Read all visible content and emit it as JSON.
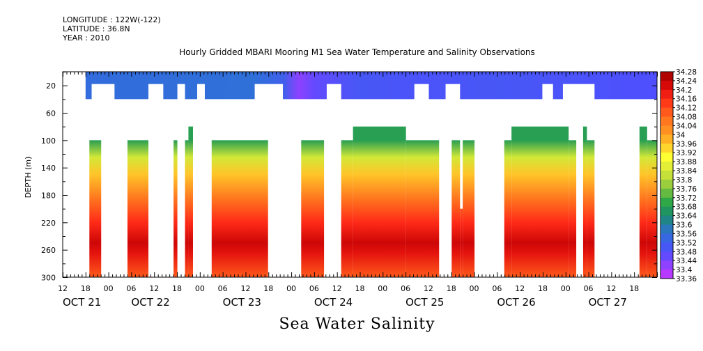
{
  "header": {
    "longitude": "LONGITUDE : 122W(-122)",
    "latitude": "LATITUDE : 36.8N",
    "year": "YEAR : 2010",
    "title": "Hourly Gridded MBARI Mooring M1 Sea Water Temperature and Salinity Observations"
  },
  "footer": {
    "variable_title": "Sea Water Salinity"
  },
  "chart_data": {
    "type": "heatmap",
    "title": "Hourly Gridded MBARI Mooring M1 Sea Water Temperature and Salinity Observations",
    "subtitle": "Sea Water Salinity",
    "xlabel": "",
    "ylabel": "DEPTH (m)",
    "x_start": "OCT 21 12:00",
    "x_end": "OCT 27 24:00",
    "xlim_hours": [
      0,
      156
    ],
    "ylim": [
      0,
      300
    ],
    "y_reversed": true,
    "y_ticks": [
      20,
      60,
      100,
      140,
      180,
      220,
      260,
      300
    ],
    "x_hour_ticks": [
      {
        "h": 0,
        "label": "12"
      },
      {
        "h": 6,
        "label": "18"
      },
      {
        "h": 12,
        "label": "00"
      },
      {
        "h": 18,
        "label": "06"
      },
      {
        "h": 24,
        "label": "12"
      },
      {
        "h": 30,
        "label": "18"
      },
      {
        "h": 36,
        "label": "00"
      },
      {
        "h": 42,
        "label": "06"
      },
      {
        "h": 48,
        "label": "12"
      },
      {
        "h": 54,
        "label": "18"
      },
      {
        "h": 60,
        "label": "00"
      },
      {
        "h": 66,
        "label": "06"
      },
      {
        "h": 72,
        "label": "12"
      },
      {
        "h": 78,
        "label": "18"
      },
      {
        "h": 84,
        "label": "00"
      },
      {
        "h": 90,
        "label": "06"
      },
      {
        "h": 96,
        "label": "12"
      },
      {
        "h": 102,
        "label": "18"
      },
      {
        "h": 108,
        "label": "00"
      },
      {
        "h": 114,
        "label": "06"
      },
      {
        "h": 120,
        "label": "12"
      },
      {
        "h": 126,
        "label": "18"
      },
      {
        "h": 132,
        "label": "00"
      },
      {
        "h": 138,
        "label": "06"
      },
      {
        "h": 144,
        "label": "12"
      },
      {
        "h": 150,
        "label": "18"
      }
    ],
    "x_day_labels": [
      {
        "h": 0,
        "label": "OCT 21"
      },
      {
        "h": 18,
        "label": "OCT 22"
      },
      {
        "h": 42,
        "label": "OCT 23"
      },
      {
        "h": 66,
        "label": "OCT 24"
      },
      {
        "h": 90,
        "label": "OCT 25"
      },
      {
        "h": 114,
        "label": "OCT 26"
      },
      {
        "h": 138,
        "label": "OCT 27"
      }
    ],
    "colorbar": {
      "min": 33.36,
      "max": 34.28,
      "step": 0.04,
      "labels": [
        "34.28",
        "34.24",
        "34.2",
        "34.16",
        "34.12",
        "34.08",
        "34.04",
        "34",
        "33.96",
        "33.92",
        "33.88",
        "33.84",
        "33.8",
        "33.76",
        "33.72",
        "33.68",
        "33.64",
        "33.6",
        "33.56",
        "33.52",
        "33.48",
        "33.44",
        "33.4",
        "33.36"
      ],
      "stops": [
        {
          "v": 33.36,
          "color": "#cc33ff"
        },
        {
          "v": 33.48,
          "color": "#4f4fff"
        },
        {
          "v": 33.56,
          "color": "#2f70d8"
        },
        {
          "v": 33.64,
          "color": "#1a8c6a"
        },
        {
          "v": 33.7,
          "color": "#2fa848"
        },
        {
          "v": 33.8,
          "color": "#b6d83a"
        },
        {
          "v": 33.9,
          "color": "#ffff33"
        },
        {
          "v": 34.0,
          "color": "#ff9c22"
        },
        {
          "v": 34.08,
          "color": "#ff6a1e"
        },
        {
          "v": 34.16,
          "color": "#ff2a18"
        },
        {
          "v": 34.22,
          "color": "#d60808"
        },
        {
          "v": 34.28,
          "color": "#a00000"
        }
      ]
    },
    "surface_layer": {
      "depth_range": [
        0,
        40
      ],
      "gaps_hours": [
        [
          7.6,
          13.6
        ],
        [
          22.5,
          26.4
        ],
        [
          30.1,
          32.1
        ],
        [
          35.3,
          37.3
        ],
        [
          50.4,
          57.8
        ],
        [
          69.3,
          73.1
        ],
        [
          92.3,
          96.1
        ],
        [
          100.5,
          104.3
        ],
        [
          125.9,
          128.7
        ],
        [
          131.3,
          139.6
        ]
      ],
      "salinity_by_hour": [
        [
          6,
          33.55
        ],
        [
          50,
          33.56
        ],
        [
          58,
          33.52
        ],
        [
          62,
          33.42
        ],
        [
          66,
          33.46
        ],
        [
          78,
          33.5
        ],
        [
          95,
          33.49
        ],
        [
          115,
          33.5
        ],
        [
          156,
          33.48
        ]
      ]
    },
    "deep_layer": {
      "segments_hours": [
        [
          7.0,
          10.1,
          100
        ],
        [
          17.0,
          22.5,
          100
        ],
        [
          29.1,
          30.1,
          100
        ],
        [
          32.1,
          33.0,
          100
        ],
        [
          33.0,
          34.2,
          80
        ],
        [
          39.1,
          53.9,
          100
        ],
        [
          62.6,
          68.6,
          100
        ],
        [
          73.1,
          76.2,
          100
        ],
        [
          76.2,
          90.1,
          80
        ],
        [
          90.1,
          98.8,
          100
        ],
        [
          102.1,
          104.3,
          100
        ],
        [
          104.3,
          105.0,
          200
        ],
        [
          105.0,
          108.1,
          100
        ],
        [
          115.9,
          117.8,
          100
        ],
        [
          117.8,
          132.8,
          80
        ],
        [
          132.8,
          134.8,
          100
        ],
        [
          136.6,
          137.6,
          80
        ],
        [
          137.6,
          139.6,
          100
        ],
        [
          151.4,
          153.4,
          80
        ],
        [
          153.4,
          156.0,
          100
        ]
      ],
      "profile": [
        [
          80,
          33.68
        ],
        [
          100,
          33.68
        ],
        [
          125,
          33.84
        ],
        [
          150,
          33.96
        ],
        [
          185,
          34.06
        ],
        [
          220,
          34.16
        ],
        [
          250,
          34.23
        ],
        [
          265,
          34.2
        ],
        [
          300,
          34.1
        ]
      ]
    }
  }
}
